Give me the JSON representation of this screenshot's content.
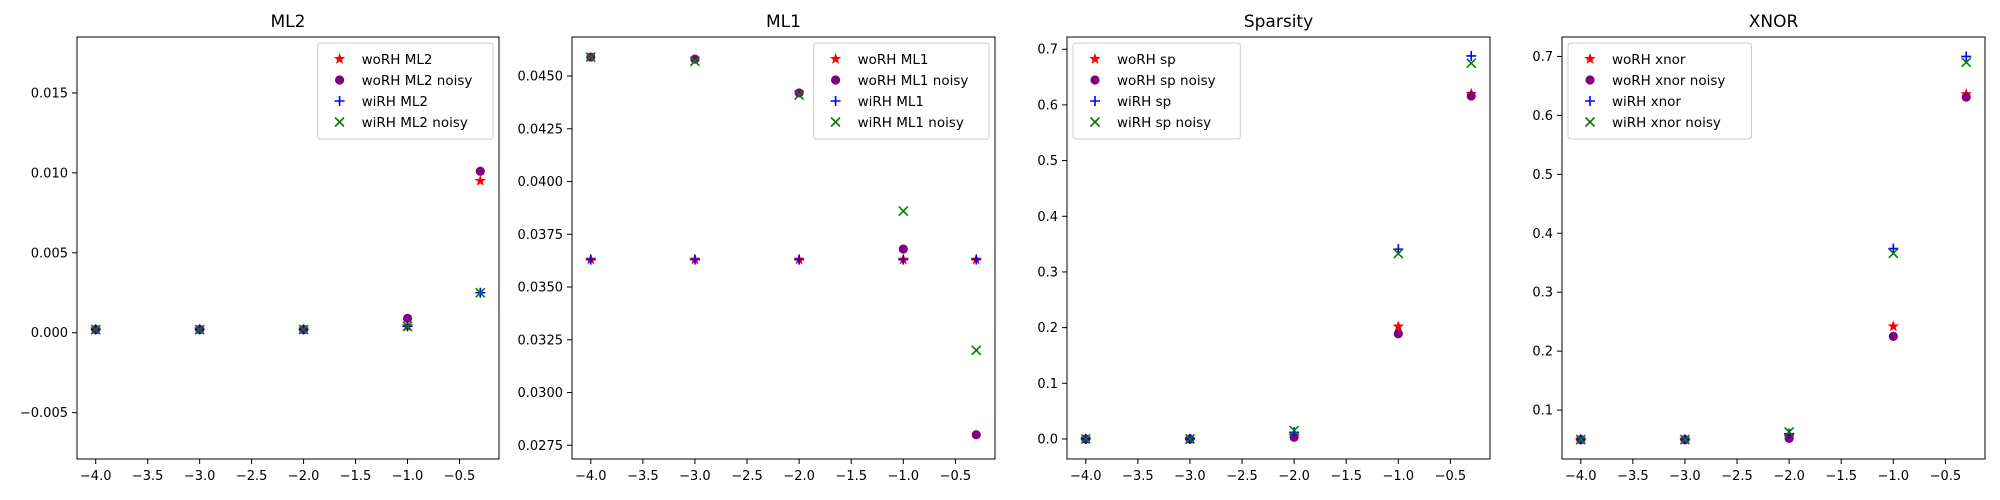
{
  "chart_data": [
    {
      "type": "scatter",
      "title": "ML2",
      "xlabel": "",
      "ylabel": "",
      "xlim": [
        -4.18,
        -0.12
      ],
      "ylim": [
        -0.0079,
        0.0185
      ],
      "xticks": [
        -4.0,
        -3.5,
        -3.0,
        -2.5,
        -2.0,
        -1.5,
        -1.0,
        -0.5
      ],
      "xtick_labels": [
        "−4.0",
        "−3.5",
        "−3.0",
        "−2.5",
        "−2.0",
        "−1.5",
        "−1.0",
        "−0.5"
      ],
      "yticks": [
        -0.005,
        0.0,
        0.005,
        0.01,
        0.015
      ],
      "ytick_labels": [
        "−0.005",
        "0.000",
        "0.005",
        "0.010",
        "0.015"
      ],
      "legend_position": "top-right",
      "series": [
        {
          "name": "woRH ML2",
          "marker": "star",
          "color": "#ff0000",
          "x": [
            -4,
            -3,
            -2,
            -1,
            -0.3
          ],
          "y": [
            0.0002,
            0.0002,
            0.0002,
            0.0004,
            0.0095
          ]
        },
        {
          "name": "woRH ML2 noisy",
          "marker": "circle",
          "color": "#800080",
          "x": [
            -4,
            -3,
            -2,
            -1,
            -0.3
          ],
          "y": [
            0.0002,
            0.0002,
            0.0002,
            0.0009,
            0.0101
          ]
        },
        {
          "name": "wiRH ML2",
          "marker": "plus",
          "color": "#0000ff",
          "x": [
            -4,
            -3,
            -2,
            -1,
            -0.3
          ],
          "y": [
            0.0002,
            0.0002,
            0.0002,
            0.0004,
            0.0025
          ]
        },
        {
          "name": "wiRH ML2 noisy",
          "marker": "x",
          "color": "#008000",
          "x": [
            -4,
            -3,
            -2,
            -1,
            -0.3
          ],
          "y": [
            0.0002,
            0.0002,
            0.0002,
            0.0004,
            0.0025
          ]
        }
      ]
    },
    {
      "type": "scatter",
      "title": "ML1",
      "xlabel": "",
      "ylabel": "",
      "xlim": [
        -4.18,
        -0.12
      ],
      "ylim": [
        0.02685,
        0.04685
      ],
      "xticks": [
        -4.0,
        -3.5,
        -3.0,
        -2.5,
        -2.0,
        -1.5,
        -1.0,
        -0.5
      ],
      "xtick_labels": [
        "−4.0",
        "−3.5",
        "−3.0",
        "−2.5",
        "−2.0",
        "−1.5",
        "−1.0",
        "−0.5"
      ],
      "yticks": [
        0.0275,
        0.03,
        0.0325,
        0.035,
        0.0375,
        0.04,
        0.0425,
        0.045
      ],
      "ytick_labels": [
        "0.0275",
        "0.0300",
        "0.0325",
        "0.0350",
        "0.0375",
        "0.0400",
        "0.0425",
        "0.0450"
      ],
      "legend_position": "top-right",
      "series": [
        {
          "name": "woRH ML1",
          "marker": "star",
          "color": "#ff0000",
          "x": [
            -4,
            -3,
            -2,
            -1,
            -0.3
          ],
          "y": [
            0.0363,
            0.0363,
            0.0363,
            0.0363,
            0.0363
          ]
        },
        {
          "name": "woRH ML1 noisy",
          "marker": "circle",
          "color": "#800080",
          "x": [
            -4,
            -3,
            -2,
            -1,
            -0.3
          ],
          "y": [
            0.0459,
            0.0458,
            0.0442,
            0.0368,
            0.028
          ]
        },
        {
          "name": "wiRH ML1",
          "marker": "plus",
          "color": "#0000ff",
          "x": [
            -4,
            -3,
            -2,
            -1,
            -0.3
          ],
          "y": [
            0.0363,
            0.0363,
            0.0363,
            0.0363,
            0.0363
          ]
        },
        {
          "name": "wiRH ML1 noisy",
          "marker": "x",
          "color": "#008000",
          "x": [
            -4,
            -3,
            -2,
            -1,
            -0.3
          ],
          "y": [
            0.0459,
            0.0457,
            0.0441,
            0.0386,
            0.032
          ]
        }
      ]
    },
    {
      "type": "scatter",
      "title": "Sparsity",
      "xlabel": "",
      "ylabel": "",
      "xlim": [
        -4.18,
        -0.12
      ],
      "ylim": [
        -0.036,
        0.722
      ],
      "xticks": [
        -4.0,
        -3.5,
        -3.0,
        -2.5,
        -2.0,
        -1.5,
        -1.0,
        -0.5
      ],
      "xtick_labels": [
        "−4.0",
        "−3.5",
        "−3.0",
        "−2.5",
        "−2.0",
        "−1.5",
        "−1.0",
        "−0.5"
      ],
      "yticks": [
        0.0,
        0.1,
        0.2,
        0.3,
        0.4,
        0.5,
        0.6,
        0.7
      ],
      "ytick_labels": [
        "0.0",
        "0.1",
        "0.2",
        "0.3",
        "0.4",
        "0.5",
        "0.6",
        "0.7"
      ],
      "legend_position": "top-left",
      "series": [
        {
          "name": "woRH sp",
          "marker": "star",
          "color": "#ff0000",
          "x": [
            -4,
            -3,
            -2,
            -1,
            -0.3
          ],
          "y": [
            0.0,
            0.0,
            0.005,
            0.202,
            0.62
          ]
        },
        {
          "name": "woRH sp noisy",
          "marker": "circle",
          "color": "#800080",
          "x": [
            -4,
            -3,
            -2,
            -1,
            -0.3
          ],
          "y": [
            0.0,
            0.0,
            0.003,
            0.189,
            0.616
          ]
        },
        {
          "name": "wiRH sp",
          "marker": "plus",
          "color": "#0000ff",
          "x": [
            -4,
            -3,
            -2,
            -1,
            -0.3
          ],
          "y": [
            0.0,
            0.0,
            0.012,
            0.341,
            0.688
          ]
        },
        {
          "name": "wiRH sp noisy",
          "marker": "x",
          "color": "#008000",
          "x": [
            -4,
            -3,
            -2,
            -1,
            -0.3
          ],
          "y": [
            0.0,
            0.0,
            0.015,
            0.333,
            0.675
          ]
        }
      ]
    },
    {
      "type": "scatter",
      "title": "XNOR",
      "xlabel": "",
      "ylabel": "",
      "xlim": [
        -4.18,
        -0.12
      ],
      "ylim": [
        0.017,
        0.733
      ],
      "xticks": [
        -4.0,
        -3.5,
        -3.0,
        -2.5,
        -2.0,
        -1.5,
        -1.0,
        -0.5
      ],
      "xtick_labels": [
        "−4.0",
        "−3.5",
        "−3.0",
        "−2.5",
        "−2.0",
        "−1.5",
        "−1.0",
        "−0.5"
      ],
      "yticks": [
        0.1,
        0.2,
        0.3,
        0.4,
        0.5,
        0.6,
        0.7
      ],
      "ytick_labels": [
        "0.1",
        "0.2",
        "0.3",
        "0.4",
        "0.5",
        "0.6",
        "0.7"
      ],
      "legend_position": "top-left",
      "series": [
        {
          "name": "woRH xnor",
          "marker": "star",
          "color": "#ff0000",
          "x": [
            -4,
            -3,
            -2,
            -1,
            -0.3
          ],
          "y": [
            0.05,
            0.05,
            0.055,
            0.242,
            0.636
          ]
        },
        {
          "name": "woRH xnor noisy",
          "marker": "circle",
          "color": "#800080",
          "x": [
            -4,
            -3,
            -2,
            -1,
            -0.3
          ],
          "y": [
            0.05,
            0.05,
            0.052,
            0.225,
            0.631
          ]
        },
        {
          "name": "wiRH xnor",
          "marker": "plus",
          "color": "#0000ff",
          "x": [
            -4,
            -3,
            -2,
            -1,
            -0.3
          ],
          "y": [
            0.05,
            0.05,
            0.06,
            0.374,
            0.7
          ]
        },
        {
          "name": "wiRH xnor noisy",
          "marker": "x",
          "color": "#008000",
          "x": [
            -4,
            -3,
            -2,
            -1,
            -0.3
          ],
          "y": [
            0.05,
            0.05,
            0.063,
            0.366,
            0.69
          ]
        }
      ]
    }
  ]
}
